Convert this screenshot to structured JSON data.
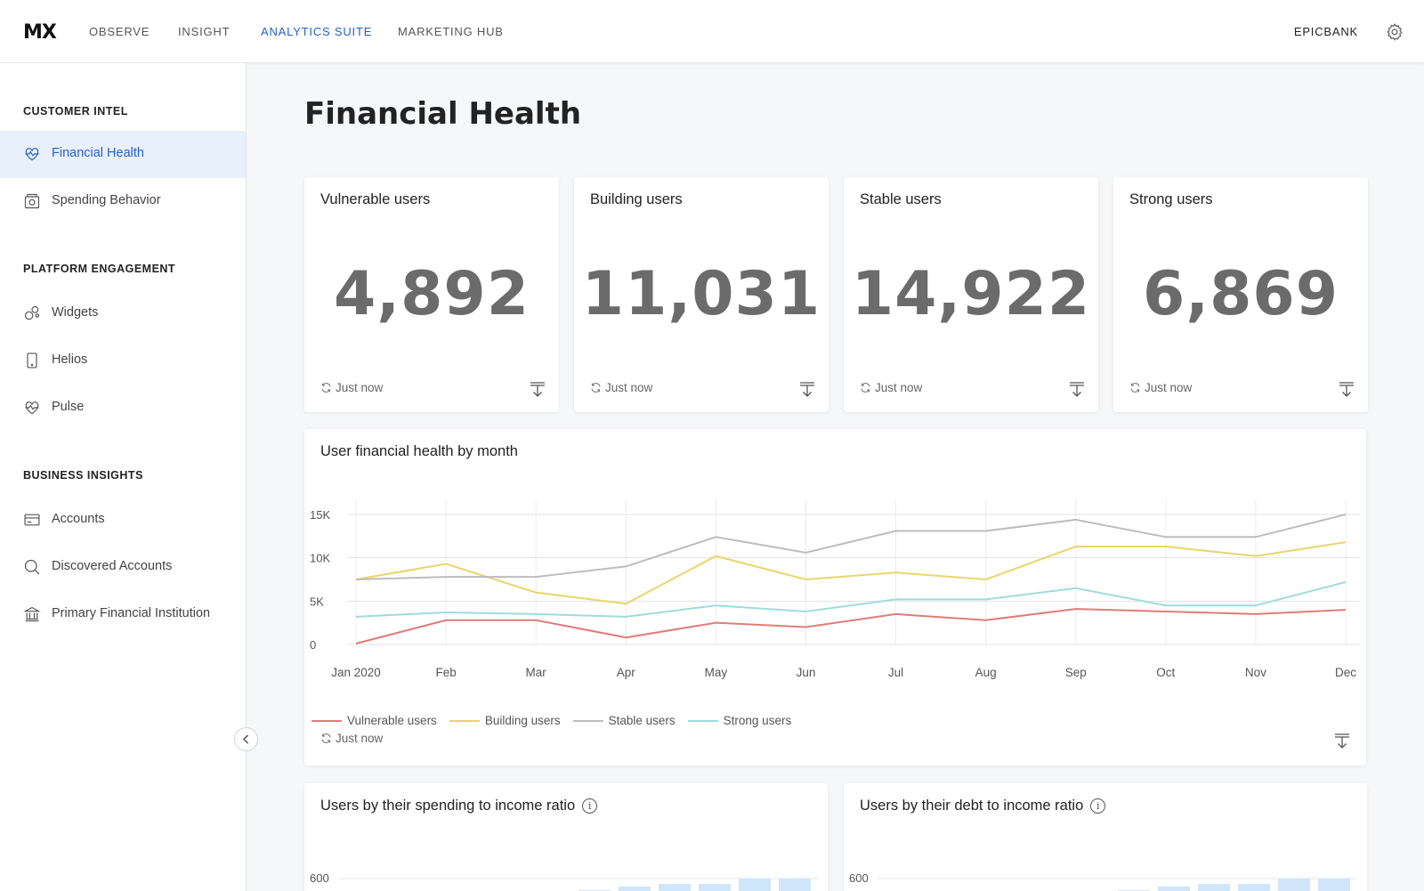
{
  "header": {
    "logo": "MX",
    "nav": [
      "OBSERVE",
      "INSIGHT",
      "ANALYTICS SUITE",
      "MARKETING HUB"
    ],
    "active_nav": "ANALYTICS SUITE",
    "bank": "EPICBANK",
    "settings_icon": "gear-icon",
    "accent_color": "#2560c8"
  },
  "sidebar": {
    "sections": [
      {
        "title": "CUSTOMER INTEL",
        "items": [
          {
            "label": "Financial Health",
            "icon": "heart-pulse-icon",
            "active": true
          },
          {
            "label": "Spending Behavior",
            "icon": "wallet-icon"
          }
        ]
      },
      {
        "title": "PLATFORM ENGAGEMENT",
        "items": [
          {
            "label": "Widgets",
            "icon": "widgets-icon"
          },
          {
            "label": "Helios",
            "icon": "phone-icon"
          },
          {
            "label": "Pulse",
            "icon": "heart-pulse-icon"
          }
        ]
      },
      {
        "title": "BUSINESS INSIGHTS",
        "items": [
          {
            "label": "Accounts",
            "icon": "card-icon"
          },
          {
            "label": "Discovered Accounts",
            "icon": "search-icon"
          },
          {
            "label": "Primary Financial Institution",
            "icon": "bank-icon"
          }
        ]
      }
    ]
  },
  "page": {
    "title": "Financial Health"
  },
  "stats": [
    {
      "title": "Vulnerable users",
      "value": "4,892",
      "updated": "Just now"
    },
    {
      "title": "Building users",
      "value": "11,031",
      "updated": "Just now"
    },
    {
      "title": "Stable users",
      "value": "14,922",
      "updated": "Just now"
    },
    {
      "title": "Strong users",
      "value": "6,869",
      "updated": "Just now"
    }
  ],
  "monthly_chart": {
    "title": "User financial health by month",
    "updated": "Just now"
  },
  "bottom_cards": [
    {
      "title": "Users by their spending to income ratio",
      "y_tick": "600"
    },
    {
      "title": "Users by their debt to income ratio",
      "y_tick": "600"
    }
  ],
  "chart_data": [
    {
      "type": "line",
      "title": "User financial health by month",
      "categories": [
        "Jan 2020",
        "Feb",
        "Mar",
        "Apr",
        "May",
        "Jun",
        "Jul",
        "Aug",
        "Sep",
        "Oct",
        "Nov",
        "Dec"
      ],
      "ylim": [
        0,
        15000
      ],
      "yticks": [
        0,
        5000,
        10000,
        15000
      ],
      "ytick_labels": [
        "0",
        "5K",
        "10K",
        "15K"
      ],
      "grid": true,
      "legend": "bottom-left",
      "series": [
        {
          "name": "Vulnerable users",
          "color": "#e07b78",
          "values": [
            100,
            2800,
            2800,
            800,
            2500,
            2000,
            3500,
            2800,
            4100,
            3800,
            3500,
            4000
          ]
        },
        {
          "name": "Building users",
          "color": "#e9d56a",
          "values": [
            7500,
            9300,
            6000,
            4700,
            10200,
            7500,
            8300,
            7500,
            11300,
            11300,
            10200,
            11800
          ]
        },
        {
          "name": "Stable users",
          "color": "#bdbdbd",
          "values": [
            7500,
            7800,
            7800,
            9000,
            12400,
            10600,
            13100,
            13100,
            14400,
            12400,
            12400,
            15000
          ]
        },
        {
          "name": "Strong users",
          "color": "#9fdcdc",
          "values": [
            3200,
            3700,
            3500,
            3200,
            4500,
            3800,
            5200,
            5200,
            6500,
            4500,
            4500,
            7200
          ]
        }
      ]
    }
  ]
}
